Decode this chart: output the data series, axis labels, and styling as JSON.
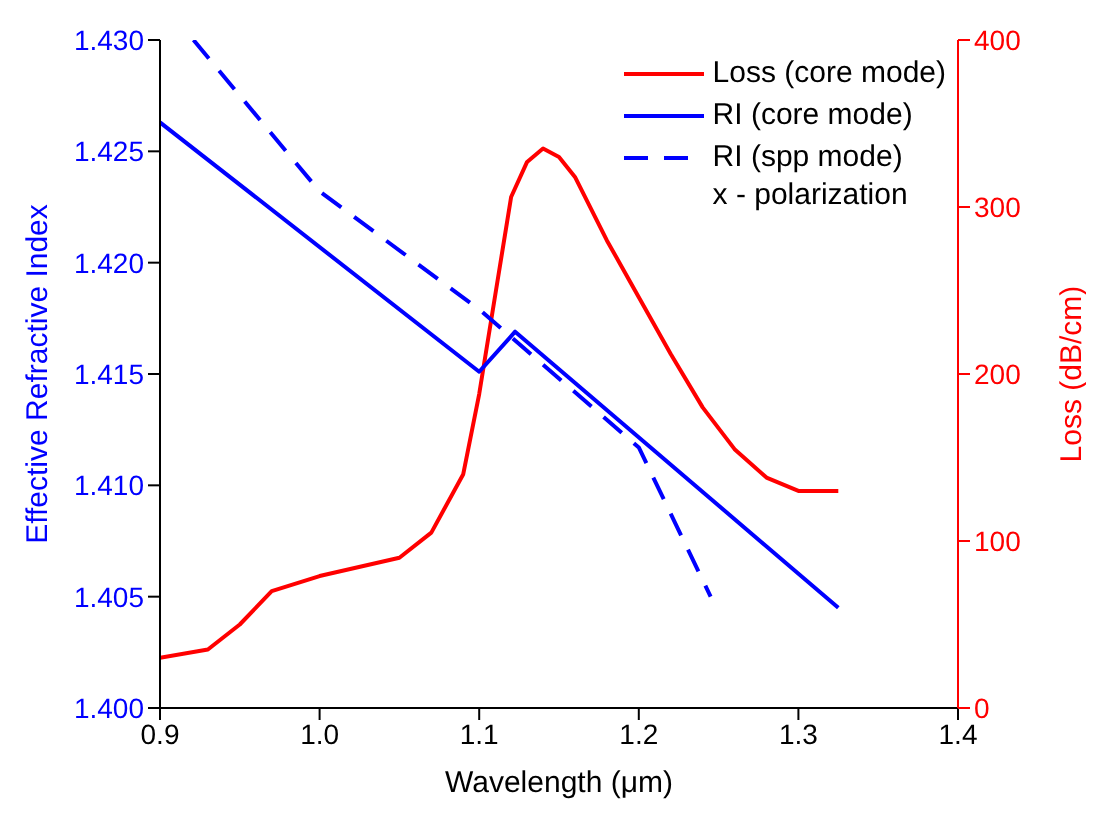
{
  "chart_data": {
    "type": "line",
    "xlabel": "Wavelength (μm)",
    "ylabel": "Effective Refractive Index",
    "y2label": "Loss (dB/cm)",
    "xlim": [
      0.9,
      1.4
    ],
    "xticks": [
      {
        "value": 0.9,
        "label": "0.9"
      },
      {
        "value": 1.0,
        "label": "1.0"
      },
      {
        "value": 1.1,
        "label": "1.1"
      },
      {
        "value": 1.2,
        "label": "1.2"
      },
      {
        "value": 1.3,
        "label": "1.3"
      },
      {
        "value": 1.4,
        "label": "1.4"
      }
    ],
    "ylim": [
      1.4,
      1.43
    ],
    "yticks": [
      {
        "value": 1.4,
        "label": "1.400"
      },
      {
        "value": 1.405,
        "label": "1.405"
      },
      {
        "value": 1.41,
        "label": "1.410"
      },
      {
        "value": 1.415,
        "label": "1.415"
      },
      {
        "value": 1.42,
        "label": "1.420"
      },
      {
        "value": 1.425,
        "label": "1.425"
      },
      {
        "value": 1.43,
        "label": "1.430"
      }
    ],
    "y2lim": [
      0,
      400
    ],
    "y2ticks": [
      0,
      100,
      200,
      300,
      400
    ],
    "grid": false,
    "legend": "top right",
    "annotations": [
      "x - polarization"
    ],
    "series": [
      {
        "name": "Loss (core mode)",
        "color": "#ff0000",
        "axis": "y2",
        "line_style": "solid",
        "x": [
          0.9,
          0.93,
          0.95,
          0.97,
          1.0,
          1.05,
          1.07,
          1.09,
          1.1,
          1.11,
          1.12,
          1.13,
          1.14,
          1.15,
          1.16,
          1.18,
          1.2,
          1.22,
          1.24,
          1.26,
          1.28,
          1.3,
          1.325
        ],
        "values": [
          30,
          35,
          50,
          70,
          79,
          90,
          105,
          140,
          188,
          247,
          306,
          327,
          335,
          330,
          318,
          280,
          246,
          212,
          180,
          155,
          138,
          130,
          130
        ]
      },
      {
        "name": "RI (core mode)",
        "color": "#0000ff",
        "line_style": "solid",
        "x": [
          0.9,
          1.1,
          1.1225,
          1.325
        ],
        "values": [
          1.4263,
          1.4151,
          1.4169,
          1.4045
        ]
      },
      {
        "name": "RI (spp mode)",
        "color": "#0000ff",
        "line_style": "dashed",
        "x": [
          0.921,
          1.0,
          1.1,
          1.2,
          1.245
        ],
        "values": [
          1.43,
          1.4232,
          1.4179,
          1.4117,
          1.405
        ]
      }
    ]
  }
}
